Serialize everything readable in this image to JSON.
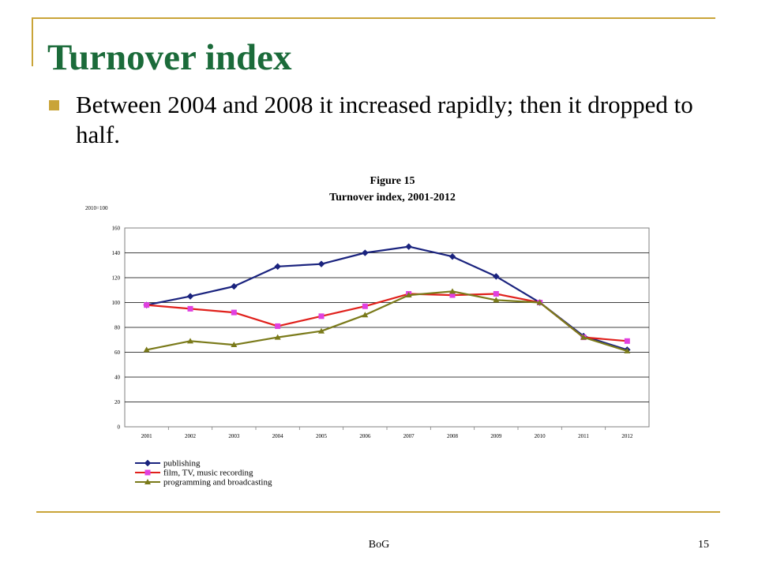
{
  "slide": {
    "title": "Turnover index",
    "bullet": "Between 2004 and 2008 it increased rapidly; then it dropped to half.",
    "footer": "BoG",
    "page_number": "15"
  },
  "colors": {
    "accent": "#c9a438",
    "title": "#1b6b3a"
  },
  "chart_data": {
    "type": "line",
    "title": "Figure 15",
    "subtitle": "Turnover index, 2001-2012",
    "unit_label": "2010=100",
    "xlabel": "",
    "ylabel": "",
    "ylim": [
      0,
      160
    ],
    "yticks": [
      0,
      20,
      40,
      60,
      80,
      100,
      120,
      140,
      160
    ],
    "grid": true,
    "legend_position": "bottom-left",
    "categories": [
      "2001",
      "2002",
      "2003",
      "2004",
      "2005",
      "2006",
      "2007",
      "2008",
      "2009",
      "2010",
      "2011",
      "2012"
    ],
    "series": [
      {
        "name": "publishing",
        "color": "#1a237e",
        "marker": "diamond",
        "values": [
          98,
          105,
          113,
          129,
          131,
          140,
          145,
          137,
          121,
          100,
          73,
          62
        ]
      },
      {
        "name": "film, TV, music recording",
        "color": "#e0201b",
        "marker_color": "#e040e0",
        "marker": "square",
        "values": [
          98,
          95,
          92,
          81,
          89,
          97,
          107,
          106,
          107,
          100,
          72,
          69
        ]
      },
      {
        "name": "programming and broadcasting",
        "color": "#7a7a1a",
        "marker": "triangle",
        "values": [
          62,
          69,
          66,
          72,
          77,
          90,
          106,
          109,
          102,
          100,
          72,
          61
        ]
      }
    ]
  }
}
